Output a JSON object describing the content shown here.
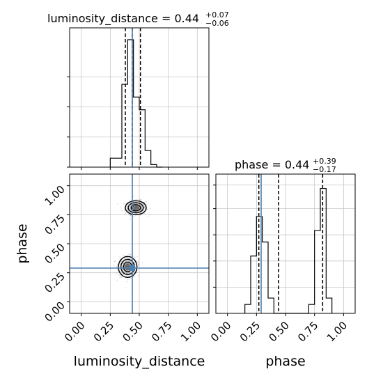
{
  "chart_data": [
    {
      "type": "histogram",
      "panel": "top-left",
      "title_param": "luminosity_distance",
      "title_value": "0.44",
      "title_sup": "+0.07",
      "title_sub": "−0.06",
      "xlim": [
        -0.1,
        1.1
      ],
      "x_ticks": [
        "0.00",
        "0.25",
        "0.50",
        "0.75",
        "1.00"
      ],
      "x_tick_values": [
        0.0,
        0.25,
        0.5,
        0.75,
        1.0
      ],
      "bins": [
        0.25,
        0.3,
        0.35,
        0.4,
        0.45,
        0.5,
        0.55,
        0.6,
        0.65,
        0.7
      ],
      "counts": [
        0.07,
        0.07,
        0.65,
        1.0,
        0.55,
        0.45,
        0.13,
        0.02,
        0.0
      ],
      "quantiles": [
        0.38,
        0.44,
        0.51
      ],
      "truth": 0.44,
      "grid": true
    },
    {
      "type": "histogram",
      "panel": "bottom-right",
      "title_param": "phase",
      "title_value": "0.44",
      "title_sup": "+0.39",
      "title_sub": "−0.17",
      "xlabel": "phase",
      "xlim": [
        -0.1,
        1.1
      ],
      "x_ticks": [
        "0.00",
        "0.25",
        "0.50",
        "0.75",
        "1.00"
      ],
      "x_tick_values": [
        0.0,
        0.25,
        0.5,
        0.75,
        1.0
      ],
      "bins": [
        0.15,
        0.2,
        0.25,
        0.3,
        0.35,
        0.4,
        0.45,
        0.5,
        0.55,
        0.6,
        0.65,
        0.7,
        0.75,
        0.8,
        0.85,
        0.9
      ],
      "counts": [
        0.07,
        0.45,
        0.76,
        0.56,
        0.12,
        0.0,
        0.0,
        0.0,
        0.0,
        0.0,
        0.0,
        0.07,
        0.65,
        0.98,
        0.12
      ],
      "quantiles": [
        0.27,
        0.44,
        0.82
      ],
      "truth": 0.29,
      "grid": true
    },
    {
      "type": "scatter",
      "panel": "bottom-left",
      "xlabel": "luminosity_distance",
      "ylabel": "phase",
      "xlim": [
        -0.1,
        1.1
      ],
      "ylim": [
        -0.1,
        1.1
      ],
      "x_ticks": [
        "0.00",
        "0.25",
        "0.50",
        "0.75",
        "1.00"
      ],
      "x_tick_values": [
        0.0,
        0.25,
        0.5,
        0.75,
        1.0
      ],
      "y_ticks": [
        "0.00",
        "0.25",
        "0.50",
        "0.75",
        "1.00"
      ],
      "y_tick_values": [
        0.0,
        0.25,
        0.5,
        0.75,
        1.0
      ],
      "clusters": [
        {
          "center": [
            0.47,
            0.81
          ],
          "spread": [
            0.045,
            0.03
          ]
        },
        {
          "center": [
            0.4,
            0.3
          ],
          "spread": [
            0.04,
            0.045
          ]
        }
      ],
      "truth": [
        0.44,
        0.29
      ],
      "grid": true
    }
  ],
  "colors": {
    "truth": "#4a7fb0",
    "hist": "#000000",
    "grid": "#c8c8c8",
    "points": "#9a9a9a"
  }
}
